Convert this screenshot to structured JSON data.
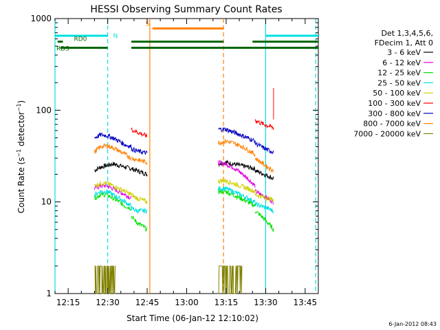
{
  "chart_data": {
    "type": "line",
    "title": "HESSI Observing Summary Count Rates",
    "xlabel": "Start Time (06-Jan-12 12:10:02)",
    "ylabel": "Count Rate (s⁻¹ detector⁻¹)",
    "ylabel_parts": {
      "main": "Count Rate (s",
      "exp1": "−1",
      "mid": " detector",
      "exp2": "−1",
      "end": ")"
    },
    "x_scale": "time-minutes-since-12:10",
    "x_range": [
      "12:10",
      "13:50"
    ],
    "y_scale": "log",
    "ylim": [
      1,
      1000
    ],
    "x_ticks": [
      "12:15",
      "12:30",
      "12:45",
      "13:00",
      "13:15",
      "13:30",
      "13:45"
    ],
    "y_ticks": [
      "1",
      "10",
      "100",
      "1000"
    ],
    "grid": false,
    "legend_position": "right",
    "legend_header": [
      "Det 1,3,4,5,6,",
      "FDecim 1, Att 0"
    ],
    "timestamp": "6-Jan-2012 08:43",
    "series": [
      {
        "name": "3 - 6 keV",
        "color": "#000000",
        "segments": [
          {
            "start": "12:25",
            "end": "12:39",
            "values": [
              22,
              24,
              25,
              26,
              25,
              24,
              23
            ]
          },
          {
            "start": "12:39",
            "end": "12:45",
            "values": [
              23,
              22,
              21,
              20
            ]
          },
          {
            "start": "13:12",
            "end": "13:26",
            "values": [
              26,
              27,
              26,
              25,
              24,
              23
            ]
          },
          {
            "start": "13:26",
            "end": "13:33",
            "values": [
              22,
              21,
              20,
              19,
              18
            ]
          }
        ]
      },
      {
        "name": "6 - 12 keV",
        "color": "#e000e0",
        "segments": [
          {
            "start": "12:25",
            "end": "12:39",
            "values": [
              14,
              15,
              15,
              14,
              13,
              12,
              11
            ]
          },
          {
            "start": "13:12",
            "end": "13:26",
            "values": [
              27,
              26,
              24,
              21,
              18,
              15
            ]
          },
          {
            "start": "13:26",
            "end": "13:33",
            "values": [
              13,
              12,
              11,
              10
            ]
          }
        ]
      },
      {
        "name": "12 - 25 keV",
        "color": "#00e000",
        "segments": [
          {
            "start": "12:25",
            "end": "12:39",
            "values": [
              11,
              12,
              12,
              11,
              10,
              9,
              8.5
            ]
          },
          {
            "start": "12:39",
            "end": "12:45",
            "values": [
              7,
              6,
              5.5,
              5
            ]
          },
          {
            "start": "13:12",
            "end": "13:26",
            "values": [
              13,
              13,
              12,
              11,
              10,
              9
            ]
          },
          {
            "start": "13:26",
            "end": "13:33",
            "values": [
              8,
              7,
              6,
              5
            ]
          }
        ]
      },
      {
        "name": "25 - 50 keV",
        "color": "#00e0e0",
        "segments": [
          {
            "start": "12:25",
            "end": "12:39",
            "values": [
              12,
              13,
              13,
              12,
              11,
              10,
              9
            ]
          },
          {
            "start": "12:39",
            "end": "12:45",
            "values": [
              8.5,
              8,
              8,
              8
            ]
          },
          {
            "start": "13:12",
            "end": "13:26",
            "values": [
              14,
              14,
              13,
              12,
              11,
              10
            ]
          },
          {
            "start": "13:26",
            "end": "13:33",
            "values": [
              9.5,
              9,
              8.5,
              8
            ]
          }
        ]
      },
      {
        "name": "50 - 100 keV",
        "color": "#d0d000",
        "segments": [
          {
            "start": "12:25",
            "end": "12:39",
            "values": [
              15,
              16,
              16,
              15,
              14,
              13,
              12
            ]
          },
          {
            "start": "12:39",
            "end": "12:45",
            "values": [
              12,
              11,
              10.5,
              10
            ]
          },
          {
            "start": "13:12",
            "end": "13:26",
            "values": [
              17,
              17,
              16,
              15,
              14,
              13
            ]
          },
          {
            "start": "13:26",
            "end": "13:33",
            "values": [
              12,
              11.5,
              11,
              10.5
            ]
          }
        ]
      },
      {
        "name": "100 - 300 keV",
        "color": "#ff0000",
        "segments": [
          {
            "start": "12:39",
            "end": "12:45",
            "values": [
              62,
              58,
              55,
              52
            ]
          },
          {
            "start": "13:26",
            "end": "13:33",
            "values": [
              78,
              72,
              68,
              64
            ]
          },
          {
            "start": "13:33",
            "end": "13:33",
            "values": [
              175
            ]
          }
        ]
      },
      {
        "name": "300 - 800 keV",
        "color": "#0000c0",
        "segments": [
          {
            "start": "12:25",
            "end": "12:39",
            "values": [
              50,
              54,
              53,
              50,
              46,
              42,
              40
            ]
          },
          {
            "start": "12:39",
            "end": "12:45",
            "values": [
              38,
              36,
              35,
              34
            ]
          },
          {
            "start": "13:12",
            "end": "13:26",
            "values": [
              62,
              62,
              58,
              54,
              50,
              46
            ]
          },
          {
            "start": "13:26",
            "end": "13:33",
            "values": [
              44,
              40,
              37,
              35
            ]
          }
        ]
      },
      {
        "name": "800 - 7000 keV",
        "color": "#ff8000",
        "segments": [
          {
            "start": "12:25",
            "end": "12:39",
            "values": [
              35,
              40,
              41,
              39,
              36,
              33,
              30
            ]
          },
          {
            "start": "12:39",
            "end": "12:45",
            "values": [
              30,
              29,
              28,
              27
            ]
          },
          {
            "start": "13:12",
            "end": "13:26",
            "values": [
              44,
              46,
              44,
              41,
              37,
              33
            ]
          },
          {
            "start": "13:26",
            "end": "13:33",
            "values": [
              30,
              27,
              24,
              22
            ]
          }
        ]
      },
      {
        "name": "7000 - 20000 keV",
        "color": "#808000",
        "segments": [
          {
            "start": "12:25",
            "end": "12:33",
            "values": [
              2,
              2,
              2,
              2,
              2
            ]
          },
          {
            "start": "13:12",
            "end": "13:21",
            "values": [
              2,
              2,
              2,
              2,
              2
            ]
          }
        ]
      }
    ],
    "flag_bars": [
      {
        "name": "N",
        "color": "#00e0e0",
        "y": 650,
        "segments": [
          [
            "12:10",
            "12:30"
          ],
          [
            "13:30",
            "13:50"
          ]
        ]
      },
      {
        "name": "S",
        "color": "#ff8000",
        "y": 780,
        "segments": [
          [
            "12:47",
            "13:14"
          ]
        ]
      },
      {
        "name": "RD0",
        "color": "#006400",
        "y": 560,
        "segments": [
          [
            "12:11",
            "12:13"
          ]
        ]
      },
      {
        "name": "RDS",
        "color": "#006400",
        "y": 480,
        "segments": [
          [
            "12:12",
            "12:30"
          ],
          [
            "12:39",
            "13:14"
          ],
          [
            "13:14",
            "13:25"
          ],
          [
            "13:25",
            "13:50"
          ]
        ]
      },
      {
        "name": "",
        "color": "#006400",
        "y": 560,
        "segments": [
          [
            "12:39",
            "13:14"
          ],
          [
            "13:25",
            "13:50"
          ]
        ]
      }
    ],
    "vertical_lines": [
      {
        "t": "12:10",
        "color": "#00e0e0",
        "style": "solid"
      },
      {
        "t": "12:30",
        "color": "#00e0e0",
        "style": "dashed"
      },
      {
        "t": "12:46",
        "color": "#ff8000",
        "style": "solid"
      },
      {
        "t": "13:14",
        "color": "#ff8000",
        "style": "dashed"
      },
      {
        "t": "13:30",
        "color": "#00e0e0",
        "style": "solid"
      },
      {
        "t": "13:49",
        "color": "#00e0e0",
        "style": "dashed"
      }
    ]
  }
}
